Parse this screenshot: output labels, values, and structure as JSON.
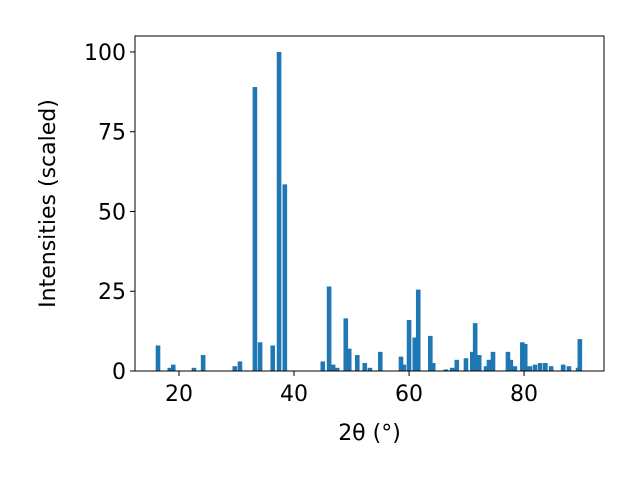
{
  "chart_data": {
    "type": "bar",
    "xlabel": "2θ (°)",
    "ylabel": "Intensities (scaled)",
    "color": "#1f77b4",
    "x": [
      16.35,
      18.4,
      19.0,
      22.6,
      24.2,
      29.7,
      30.6,
      33.2,
      34.1,
      36.3,
      37.4,
      38.4,
      45.0,
      46.1,
      46.8,
      47.5,
      49.0,
      49.6,
      51.0,
      52.3,
      53.2,
      55.0,
      58.6,
      59.1,
      60.0,
      61.0,
      61.6,
      63.7,
      64.2,
      66.4,
      67.5,
      68.3,
      69.9,
      71.0,
      71.5,
      72.2,
      73.4,
      73.9,
      74.6,
      77.2,
      77.7,
      78.4,
      79.7,
      80.2,
      81.0,
      81.9,
      82.8,
      83.7,
      84.7,
      86.8,
      87.8,
      89.4,
      89.7
    ],
    "values": [
      8,
      1,
      2,
      1,
      5,
      1.5,
      3,
      89,
      9,
      8,
      100,
      58.5,
      3,
      26.5,
      2,
      1,
      16.5,
      7,
      5,
      2.5,
      1,
      6,
      4.5,
      2,
      16,
      10.5,
      25.5,
      11,
      2.5,
      0.5,
      1,
      3.5,
      4,
      6,
      15,
      5,
      1.5,
      3.5,
      6,
      6,
      3.5,
      1.5,
      9,
      8.5,
      1.5,
      2,
      2.5,
      2.5,
      1.5,
      2,
      1.5,
      1,
      10
    ],
    "xlim": [
      12.35,
      93.9
    ],
    "xticks": [
      20,
      40,
      60,
      80
    ],
    "ylim": [
      0,
      105
    ],
    "yticks": [
      0,
      25,
      50,
      75,
      100
    ]
  }
}
